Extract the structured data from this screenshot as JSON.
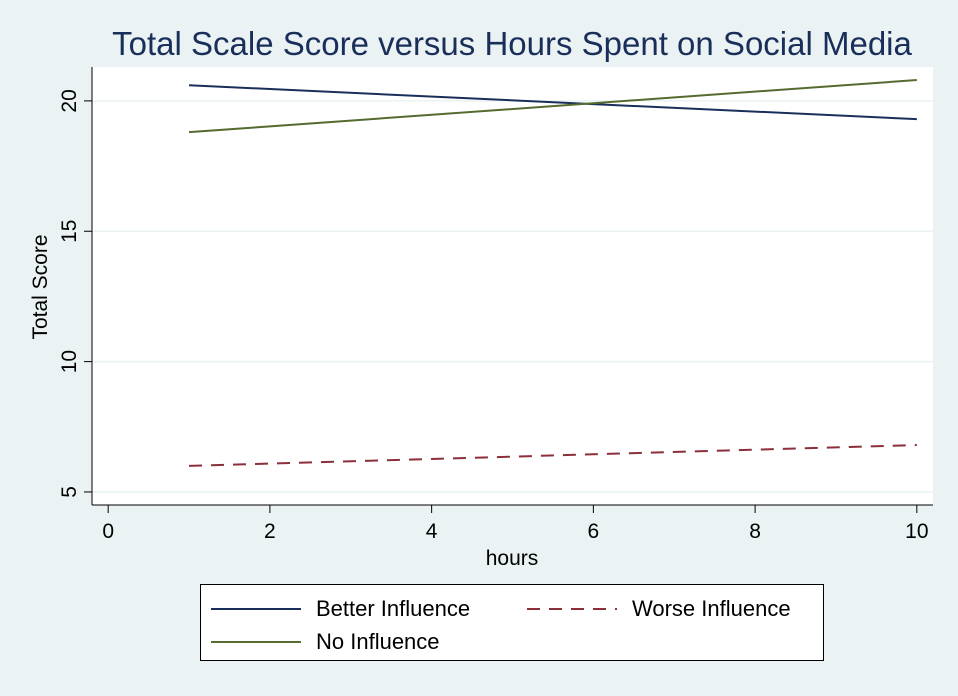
{
  "chart_data": {
    "type": "line",
    "title": "Total Scale Score versus Hours Spent on Social Media",
    "xlabel": "hours",
    "ylabel": "Total Score",
    "xlim": [
      -0.2,
      10.2
    ],
    "ylim": [
      4.5,
      21.3
    ],
    "xticks": [
      0,
      2,
      4,
      6,
      8,
      10
    ],
    "yticks": [
      5,
      10,
      15,
      20
    ],
    "grid": true,
    "legend_position": "bottom",
    "series": [
      {
        "name": "Better Influence",
        "x": [
          1,
          10
        ],
        "y": [
          20.6,
          19.3
        ],
        "color": "#1a2e5a",
        "dash": "solid"
      },
      {
        "name": "Worse Influence",
        "x": [
          1,
          10
        ],
        "y": [
          6.0,
          6.8
        ],
        "color": "#8b2f3b",
        "dash": "dashed"
      },
      {
        "name": "No Influence",
        "x": [
          1,
          10
        ],
        "y": [
          18.8,
          20.8
        ],
        "color": "#556b2f",
        "dash": "solid"
      }
    ]
  }
}
